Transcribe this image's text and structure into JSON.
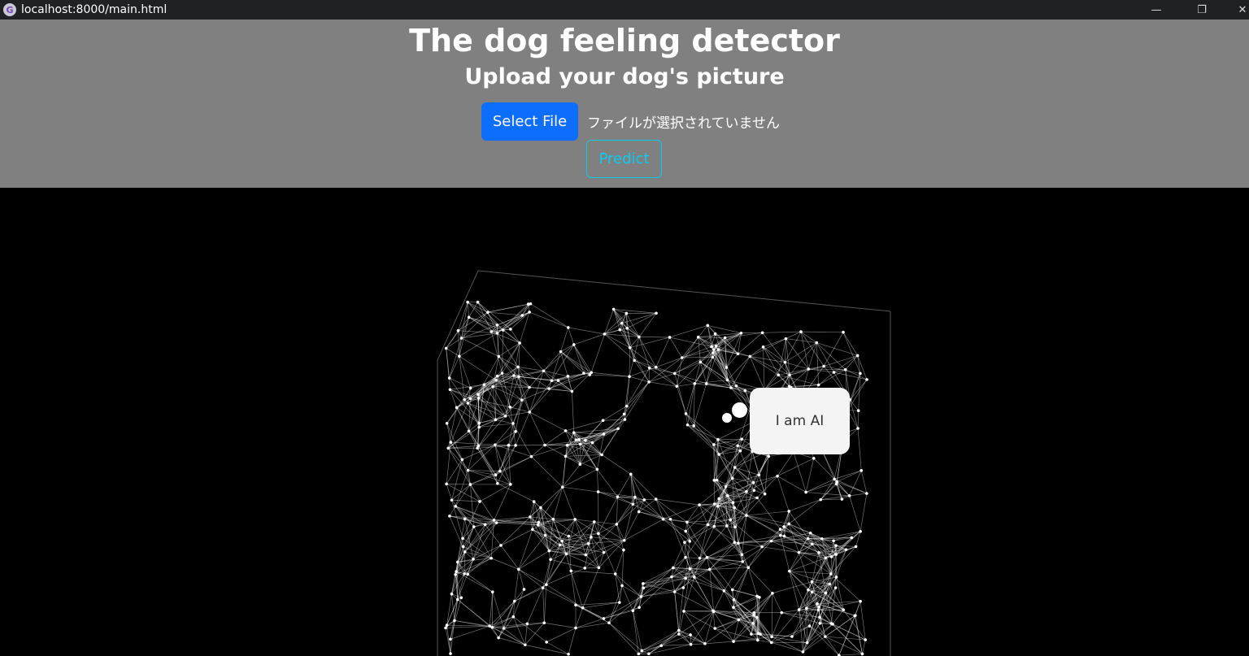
{
  "browser": {
    "url": "localhost:8000/main.html",
    "favicon": "G"
  },
  "header": {
    "title": "The dog feeling detector",
    "subtitle": "Upload your dog's picture",
    "select_file_label": "Select File",
    "no_file_text": "ファイルが選択されていません",
    "predict_label": "Predict"
  },
  "bubble": {
    "text": "I am AI"
  },
  "colors": {
    "primary": "#0d6efd",
    "info": "#0dcaf0",
    "header_bg": "#808080"
  }
}
